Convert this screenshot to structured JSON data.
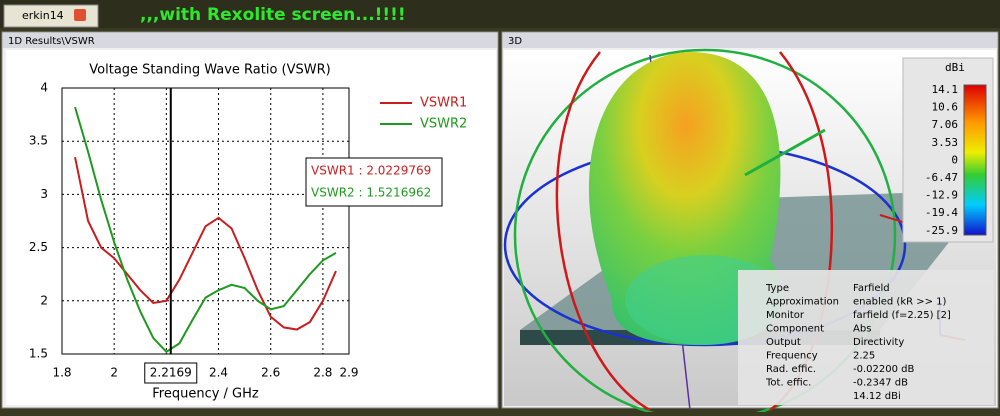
{
  "tab": {
    "label": "erkin14"
  },
  "banner": ",,,with Rexolite screen...!!!!",
  "left_panel_title": "1D Results\\VSWR",
  "chart_data": {
    "type": "line",
    "title": "Voltage Standing Wave Ratio (VSWR)",
    "x_label": "Frequency / GHz",
    "x": [
      1.85,
      1.9,
      1.95,
      2.0,
      2.05,
      2.1,
      2.15,
      2.2,
      2.25,
      2.3,
      2.35,
      2.4,
      2.45,
      2.5,
      2.55,
      2.6,
      2.65,
      2.7,
      2.75,
      2.8,
      2.85
    ],
    "series": [
      {
        "name": "VSWR1",
        "color": "#c81e1e",
        "values": [
          3.35,
          2.75,
          2.5,
          2.4,
          2.25,
          2.1,
          1.98,
          2.0,
          2.2,
          2.45,
          2.7,
          2.78,
          2.68,
          2.4,
          2.1,
          1.85,
          1.75,
          1.73,
          1.8,
          2.0,
          2.28
        ]
      },
      {
        "name": "VSWR2",
        "color": "#1e9a1e",
        "values": [
          3.82,
          3.4,
          2.95,
          2.55,
          2.2,
          1.9,
          1.65,
          1.52,
          1.6,
          1.82,
          2.03,
          2.1,
          2.15,
          2.12,
          2.0,
          1.92,
          1.95,
          2.1,
          2.25,
          2.38,
          2.45
        ]
      }
    ],
    "xlim": [
      1.8,
      2.9
    ],
    "xticks": [
      1.8,
      2,
      2.2,
      2.4,
      2.6,
      2.8,
      2.9
    ],
    "ylim": [
      1.5,
      4
    ],
    "yticks": [
      1.5,
      2,
      2.5,
      3,
      3.5,
      4
    ],
    "grid": true,
    "marker": {
      "value": 2.2169,
      "label": "2.2169"
    },
    "readouts": [
      "VSWR1 : 2.0229769",
      "VSWR2 : 1.5216962"
    ]
  },
  "right_panel_title": "3D",
  "colorbar": {
    "unit": "dBi",
    "labels": [
      "14.1",
      "10.6",
      "7.06",
      "3.53",
      "0",
      "-6.47",
      "-12.9",
      "-19.4",
      "-25.9"
    ]
  },
  "info_panel": {
    "rows": [
      [
        "Type",
        "Farfield"
      ],
      [
        "Approximation",
        "enabled (kR >> 1)"
      ],
      [
        "Monitor",
        "farfield (f=2.25) [2]"
      ],
      [
        "Component",
        "Abs"
      ],
      [
        "Output",
        "Directivity"
      ],
      [
        "Frequency",
        "2.25"
      ],
      [
        "Rad. effic.",
        "-0.02200 dB"
      ],
      [
        "Tot. effic.",
        "-0.2347 dB"
      ]
    ],
    "directivity_value": "14.12 dBi"
  }
}
